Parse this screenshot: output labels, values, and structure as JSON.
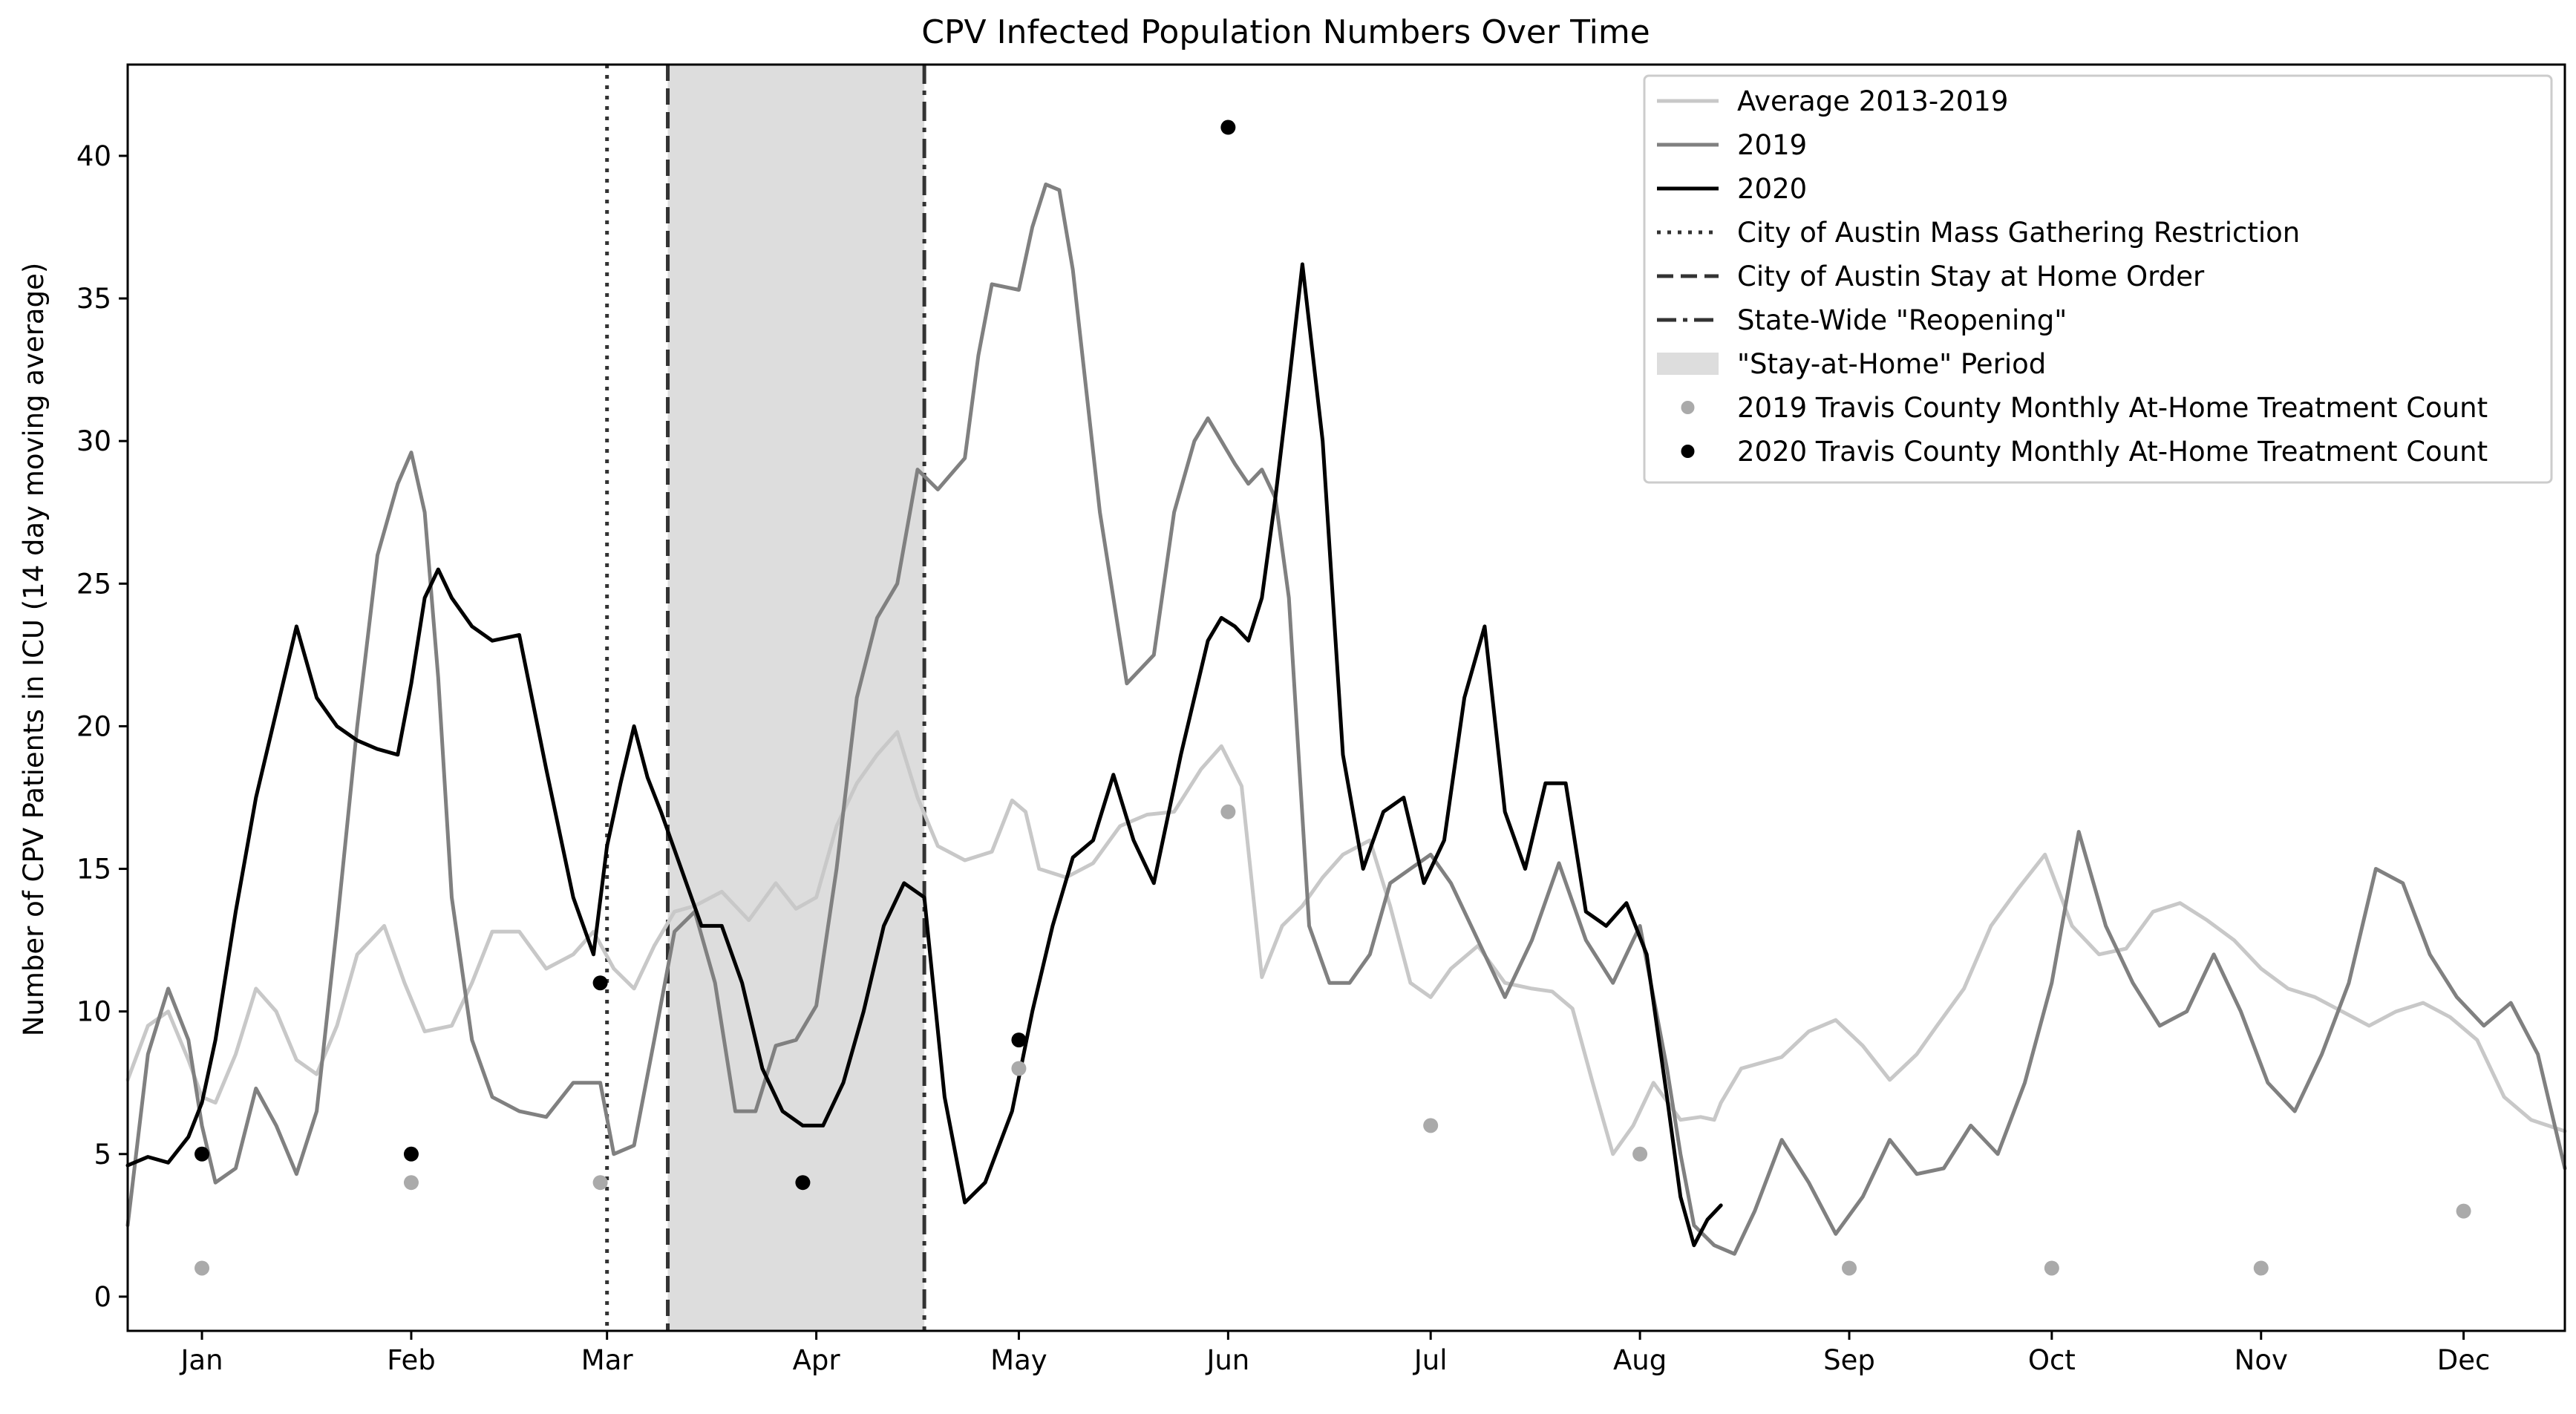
{
  "chart_data": {
    "type": "line",
    "title": "CPV Infected Population Numbers Over Time",
    "xlabel": "",
    "ylabel": "Number of CPV Patients in ICU (14 day moving average)",
    "x_unit": "day of year",
    "xlim": [
      -10,
      351
    ],
    "ylim": [
      -1.2,
      43.2
    ],
    "x_ticks": [
      {
        "label": "Jan",
        "x": 1
      },
      {
        "label": "Feb",
        "x": 32
      },
      {
        "label": "Mar",
        "x": 61
      },
      {
        "label": "Apr",
        "x": 92
      },
      {
        "label": "May",
        "x": 122
      },
      {
        "label": "Jun",
        "x": 153
      },
      {
        "label": "Jul",
        "x": 183
      },
      {
        "label": "Aug",
        "x": 214
      },
      {
        "label": "Sep",
        "x": 245
      },
      {
        "label": "Oct",
        "x": 275
      },
      {
        "label": "Nov",
        "x": 306
      },
      {
        "label": "Dec",
        "x": 336
      }
    ],
    "y_ticks": [
      0,
      5,
      10,
      15,
      20,
      25,
      30,
      35,
      40
    ],
    "grid": false,
    "legend_position": "top-right",
    "series": [
      {
        "name": "Average 2013-2019",
        "color": "#c8c8c8",
        "x": [
          -10,
          -7,
          -4,
          -1,
          1,
          3,
          6,
          9,
          12,
          15,
          18,
          21,
          24,
          28,
          31,
          34,
          38,
          41,
          44,
          48,
          52,
          56,
          59,
          62,
          65,
          68,
          71,
          74,
          78,
          82,
          86,
          89,
          92,
          95,
          98,
          101,
          104,
          107,
          110,
          114,
          118,
          121,
          123,
          125,
          129,
          133,
          137,
          141,
          145,
          149,
          152,
          155,
          158,
          161,
          164,
          167,
          170,
          174,
          177,
          180,
          183,
          186,
          190,
          194,
          198,
          201,
          204,
          207,
          210,
          213,
          216,
          220,
          223,
          225,
          226,
          229,
          232,
          235,
          239,
          243,
          247,
          251,
          255,
          258,
          262,
          266,
          270,
          274,
          278,
          282,
          286,
          290,
          294,
          298,
          302,
          306,
          310,
          314,
          318,
          322,
          326,
          330,
          334,
          338,
          342,
          346,
          351
        ],
        "y": [
          7.6,
          9.5,
          10,
          8.3,
          7,
          6.8,
          8.5,
          10.8,
          10,
          8.3,
          7.8,
          9.5,
          12,
          13,
          11,
          9.3,
          9.5,
          11,
          12.8,
          12.8,
          11.5,
          12,
          12.8,
          11.5,
          10.8,
          12.3,
          13.5,
          13.7,
          14.2,
          13.2,
          14.5,
          13.6,
          14,
          16.5,
          18,
          19,
          19.8,
          17.5,
          15.8,
          15.3,
          15.6,
          17.4,
          17,
          15,
          14.7,
          15.2,
          16.5,
          16.9,
          17,
          18.5,
          19.3,
          17.9,
          11.2,
          13,
          13.7,
          14.7,
          15.5,
          16,
          13.7,
          11,
          10.5,
          11.5,
          12.3,
          11,
          10.8,
          10.7,
          10.1,
          7.5,
          5,
          6,
          7.5,
          6.2,
          6.3,
          6.2,
          6.8,
          8,
          8.2,
          8.4,
          9.3,
          9.7,
          8.8,
          7.6,
          8.5,
          9.5,
          10.8,
          13,
          14.3,
          15.5,
          13,
          12,
          12.2,
          13.5,
          13.8,
          13.2,
          12.5,
          11.5,
          10.8,
          10.5,
          10,
          9.5,
          10,
          10.3,
          9.8,
          9,
          7,
          6.2,
          5.8
        ]
      },
      {
        "name": "2019",
        "color": "#808080",
        "x": [
          -10,
          -7,
          -4,
          -1,
          1,
          3,
          6,
          9,
          12,
          15,
          18,
          21,
          24,
          27,
          30,
          32,
          34,
          36,
          38,
          41,
          44,
          48,
          52,
          56,
          60,
          62,
          65,
          68,
          71,
          74,
          77,
          80,
          83,
          86,
          89,
          92,
          95,
          98,
          101,
          104,
          107,
          110,
          114,
          116,
          118,
          120,
          122,
          124,
          126,
          128,
          130,
          134,
          138,
          142,
          145,
          148,
          150,
          152,
          154,
          156,
          158,
          160,
          162,
          165,
          168,
          171,
          174,
          177,
          180,
          183,
          186,
          190,
          194,
          198,
          202,
          206,
          210,
          214,
          218,
          220,
          222,
          225,
          228,
          231,
          235,
          239,
          243,
          247,
          251,
          255,
          259,
          263,
          267,
          271,
          275,
          279,
          283,
          287,
          291,
          295,
          299,
          303,
          307,
          311,
          315,
          319,
          323,
          327,
          331,
          335,
          339,
          343,
          347,
          351
        ],
        "y": [
          2.5,
          8.5,
          10.8,
          9,
          6,
          4,
          4.5,
          7.3,
          6,
          4.3,
          6.5,
          13,
          20,
          26,
          28.5,
          29.6,
          27.5,
          21.7,
          14,
          9,
          7,
          6.5,
          6.3,
          7.5,
          7.5,
          5,
          5.3,
          9,
          12.8,
          13.5,
          11,
          6.5,
          6.5,
          8.8,
          9,
          10.2,
          15,
          21,
          23.8,
          25,
          29,
          28.3,
          29.4,
          33,
          35.5,
          35.4,
          35.3,
          37.5,
          39,
          38.8,
          36,
          27.5,
          21.5,
          22.5,
          27.5,
          30,
          30.8,
          30,
          29.2,
          28.5,
          29,
          28,
          24.5,
          13,
          11,
          11,
          12,
          14.5,
          15,
          15.5,
          14.5,
          12.5,
          10.5,
          12.5,
          15.2,
          12.5,
          11,
          13,
          8,
          5,
          2.5,
          1.8,
          1.5,
          3,
          5.5,
          4,
          2.2,
          3.5,
          5.5,
          4.3,
          4.5,
          6,
          5,
          7.5,
          11,
          16.3,
          13,
          11,
          9.5,
          10,
          12,
          10,
          7.5,
          6.5,
          8.5,
          11,
          15,
          14.5,
          12,
          10.5,
          9.5,
          10.3,
          8.5,
          4.5
        ]
      },
      {
        "name": "2020",
        "color": "#000000",
        "x": [
          -10,
          -7,
          -4,
          -1,
          1,
          3,
          6,
          9,
          12,
          15,
          18,
          21,
          24,
          27,
          30,
          32,
          34,
          36,
          38,
          41,
          44,
          48,
          52,
          56,
          59,
          61,
          63,
          65,
          67,
          69,
          72,
          75,
          78,
          81,
          84,
          87,
          90,
          93,
          96,
          99,
          102,
          105,
          108,
          111,
          114,
          117,
          121,
          124,
          127,
          130,
          133,
          136,
          139,
          142,
          146,
          150,
          152,
          154,
          156,
          158,
          160,
          162,
          164,
          167,
          170,
          173,
          176,
          179,
          182,
          185,
          188,
          191,
          194,
          197,
          200,
          203,
          206,
          209,
          212,
          215,
          218,
          220,
          222,
          224,
          226
        ],
        "y": [
          4.6,
          4.9,
          4.7,
          5.6,
          6.8,
          9,
          13.5,
          17.5,
          20.5,
          23.5,
          21,
          20,
          19.5,
          19.2,
          19,
          21.5,
          24.5,
          25.5,
          24.5,
          23.5,
          23,
          23.2,
          18.5,
          14,
          12,
          15.8,
          18,
          20,
          18.2,
          17,
          15,
          13,
          13,
          11,
          8,
          6.5,
          6,
          6,
          7.5,
          10,
          13,
          14.5,
          14,
          7,
          3.3,
          4,
          6.5,
          10,
          13,
          15.4,
          16,
          18.3,
          16,
          14.5,
          19,
          23,
          23.8,
          23.5,
          23,
          24.5,
          28,
          32,
          36.2,
          30,
          19,
          15,
          17,
          17.5,
          14.5,
          16,
          21,
          23.5,
          17,
          15,
          18,
          18,
          13.5,
          13,
          13.8,
          12,
          7,
          3.5,
          1.8,
          2.7,
          3.2
        ]
      },
      {
        "name": "2019 Travis County Monthly At-Home Treatment Count",
        "type": "scatter",
        "color": "#aaaaaa",
        "x": [
          1,
          32,
          60,
          122,
          153,
          183,
          214,
          245,
          275,
          306,
          336
        ],
        "y": [
          1,
          4,
          4,
          8,
          17,
          6,
          5,
          1,
          1,
          1,
          3
        ]
      },
      {
        "name": "2020 Travis County Monthly At-Home Treatment Count",
        "type": "scatter",
        "color": "#000000",
        "x": [
          1,
          32,
          60,
          90,
          122,
          153
        ],
        "y": [
          5,
          5,
          11,
          4,
          9,
          41
        ]
      }
    ],
    "vertical_lines": [
      {
        "name": "City of Austin Mass Gathering Restriction",
        "x": 61,
        "style": "dotted"
      },
      {
        "name": "City of Austin Stay at Home Order",
        "x": 70,
        "style": "dashed"
      },
      {
        "name": "State-Wide \"Reopening\"",
        "x": 108,
        "style": "dashdot"
      }
    ],
    "shaded_regions": [
      {
        "name": "\"Stay-at-Home\" Period",
        "x_start": 70,
        "x_end": 108,
        "color": "#dddddd"
      }
    ]
  }
}
